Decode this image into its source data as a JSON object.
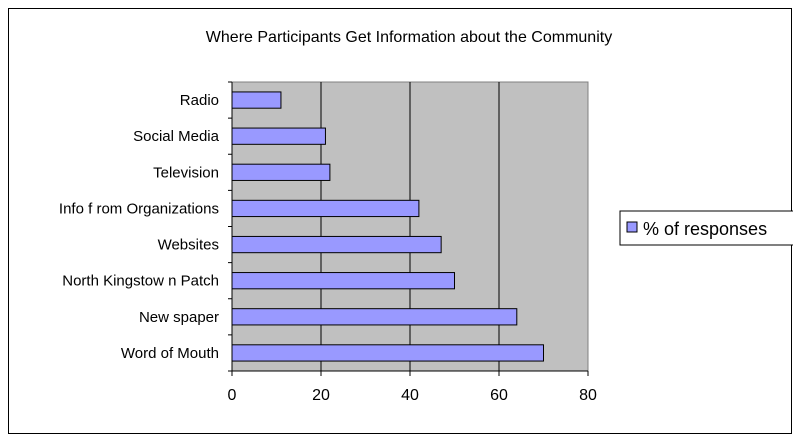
{
  "chart_data": {
    "type": "bar",
    "orientation": "horizontal",
    "title": "Where Participants Get Information about the Community",
    "xlabel": "",
    "ylabel": "",
    "categories": [
      "Radio",
      "Social Media",
      "Television",
      "Info from Organizations",
      "Websites",
      "North Kingstown Patch",
      "Newspaper",
      "Word of Mouth"
    ],
    "category_labels_display": [
      "Radio",
      "Social Media",
      "Television",
      "Info f rom Organizations",
      "Websites",
      "North Kingstow n Patch",
      "New spaper",
      "Word of Mouth"
    ],
    "series": [
      {
        "name": "% of responses",
        "values": [
          11,
          21,
          22,
          42,
          47,
          50,
          64,
          70
        ]
      }
    ],
    "xlim": [
      0,
      80
    ],
    "xticks": [
      0,
      20,
      40,
      60,
      80
    ],
    "xtick_labels": [
      "0",
      "20",
      "40",
      "60",
      "80"
    ],
    "grid": true,
    "legend_position": "right",
    "colors": {
      "bar_fill": "#9999ff",
      "bar_stroke": "#000000",
      "plot_background": "#c0c0c0",
      "gridline": "#000000"
    }
  }
}
